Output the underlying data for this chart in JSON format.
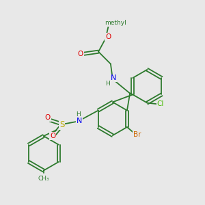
{
  "bg_color": "#e8e8e8",
  "bond_color": "#2d7a2d",
  "atom_colors": {
    "N": "#0000ee",
    "O": "#dd0000",
    "S": "#bbaa00",
    "Br": "#cc6600",
    "Cl": "#44bb00",
    "C": "#2d7a2d",
    "H": "#2d7a2d"
  },
  "font_size": 7.5,
  "line_width": 1.3
}
